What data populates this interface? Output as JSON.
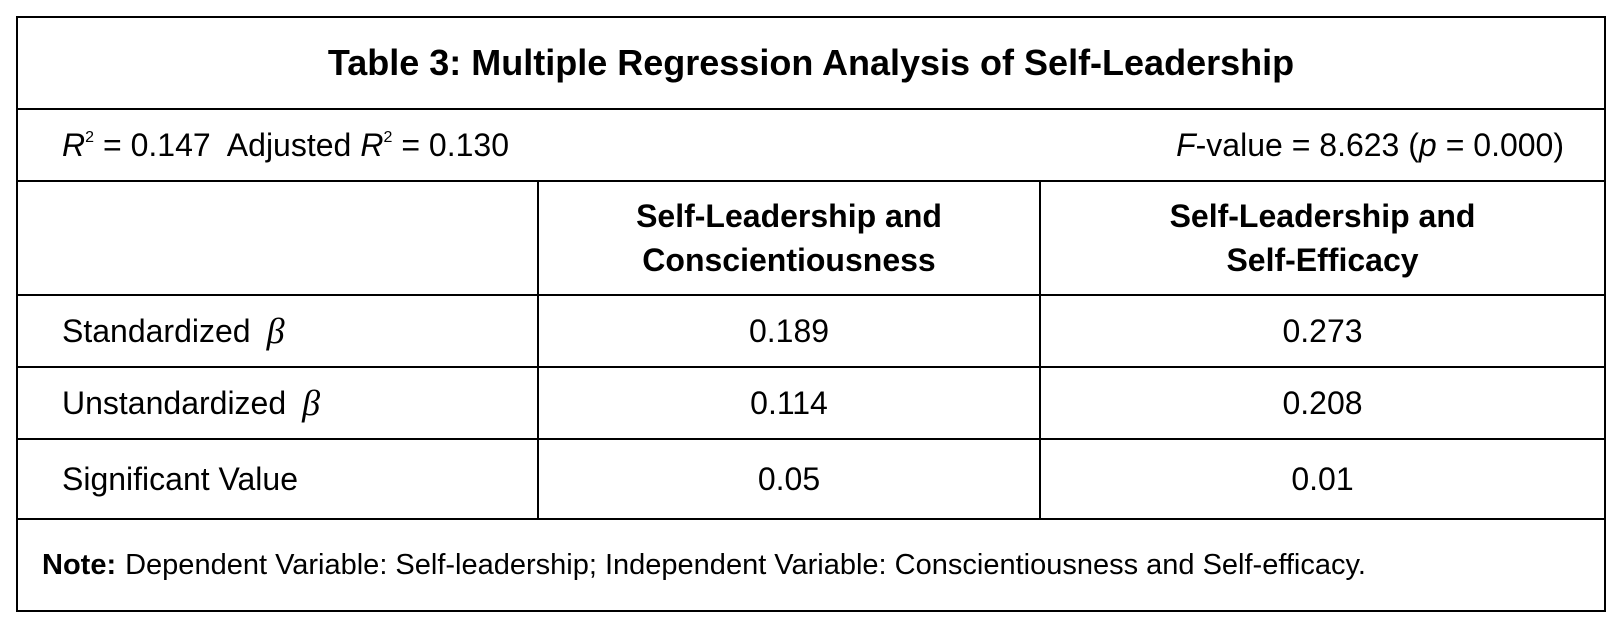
{
  "table": {
    "title": "Table 3: Multiple Regression Analysis of Self-Leadership",
    "stats": {
      "r_squared": {
        "symbol": "R",
        "superscript": "2",
        "text": "= 0.147"
      },
      "adjusted_r_squared": {
        "prefix": "Adjusted",
        "symbol": "R",
        "superscript": "2",
        "text": "= 0.130"
      },
      "f_value": {
        "symbol": "F",
        "text": "-value = 8.623 (",
        "p_symbol": "p",
        "p_text": "= 0.000)"
      }
    },
    "columns": [
      [
        "Self-Leadership and",
        "Conscientiousness"
      ],
      [
        "Self-Leadership and",
        "Self-Efficacy"
      ]
    ],
    "rows": [
      {
        "label": "Standardized",
        "symbol": "β",
        "values": [
          "0.189",
          "0.273"
        ]
      },
      {
        "label": "Unstandardized",
        "symbol": "β",
        "values": [
          "0.114",
          "0.208"
        ]
      },
      {
        "label": "Significant Value",
        "values": [
          "0.05",
          "0.01"
        ]
      }
    ],
    "note": {
      "label": "Note:",
      "text": "Dependent Variable: Self-leadership; Independent Variable: Conscientiousness and Self-efficacy."
    }
  }
}
